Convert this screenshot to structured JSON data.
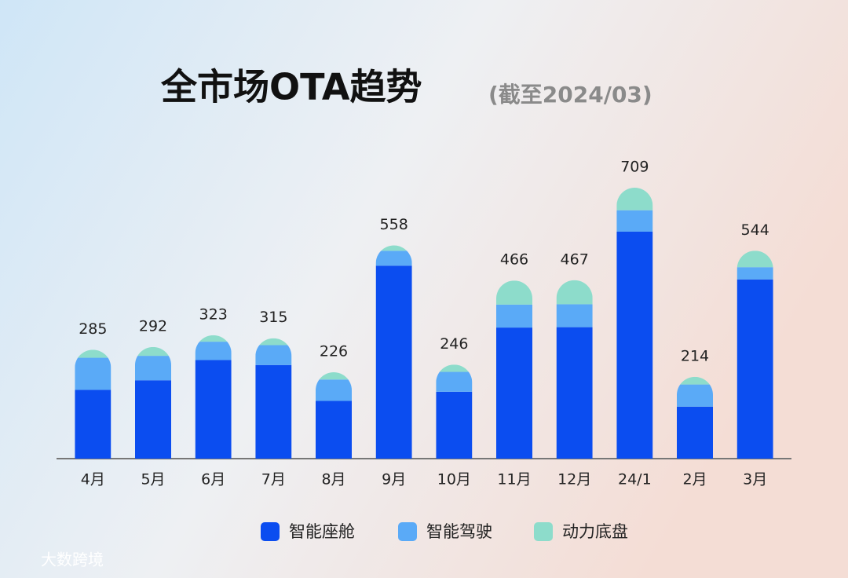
{
  "chart_data": {
    "type": "bar",
    "stacked": true,
    "title": "全市场OTA趋势",
    "subtitle": "(截至2024/03)",
    "watermark": "大数跨境",
    "categories": [
      "4月",
      "5月",
      "6月",
      "7月",
      "8月",
      "9月",
      "10月",
      "11月",
      "12月",
      "24/1",
      "2月",
      "3月"
    ],
    "series": [
      {
        "name": "智能座舱",
        "color": "#0b4df0",
        "values": [
          180,
          205,
          258,
          245,
          151,
          505,
          175,
          343,
          344,
          594,
          136,
          469
        ]
      },
      {
        "name": "智能驾驶",
        "color": "#5aaaf7",
        "values": [
          84,
          64,
          48,
          52,
          56,
          39,
          52,
          60,
          60,
          56,
          58,
          32
        ]
      },
      {
        "name": "动力底盘",
        "color": "#8ddccb",
        "values": [
          21,
          23,
          17,
          18,
          19,
          14,
          19,
          63,
          63,
          59,
          20,
          43
        ]
      }
    ],
    "totals": [
      285,
      292,
      323,
      315,
      226,
      558,
      246,
      466,
      467,
      709,
      214,
      544
    ],
    "legend": "bottom"
  }
}
